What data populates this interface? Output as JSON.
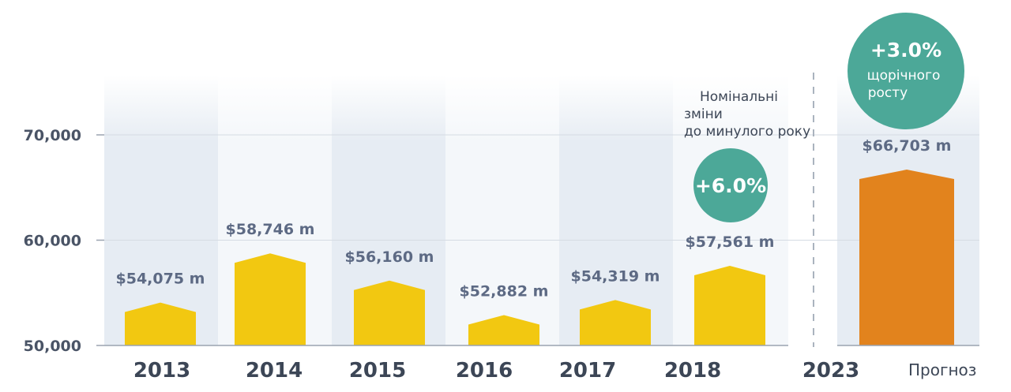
{
  "chart_data": {
    "type": "bar",
    "categories": [
      "2013",
      "2014",
      "2015",
      "2016",
      "2017",
      "2018",
      "2023"
    ],
    "values": [
      54075,
      58746,
      56160,
      52882,
      54319,
      57561,
      66703
    ],
    "value_labels": [
      "$54,075 m",
      "$58,746 m",
      "$56,160 m",
      "$52,882 m",
      "$54,319 m",
      "$57,561 m",
      "$66,703 m"
    ],
    "forecast_index": 6,
    "forecast_label": "Прогноз",
    "yticks": [
      "50,000",
      "60,000",
      "70,000"
    ],
    "ytick_values": [
      50000,
      60000,
      70000
    ],
    "ylim": [
      50000,
      75000
    ],
    "grid": true,
    "colors": {
      "bar": "#f2c811",
      "forecast_bar": "#e2831d",
      "badge": "#4ca898",
      "panel_dark": "#e6ecf3",
      "panel_light": "#f4f7fa",
      "grid": "#d5dbe3",
      "axis": "#9aa3b0"
    },
    "annotations": {
      "nominal_note": [
        "Номінальні",
        "зміни",
        "до минулого року"
      ],
      "nominal_badge": "+6.0%",
      "growth_badge": "+3.0%",
      "growth_note": [
        "щорічного",
        "росту"
      ]
    }
  }
}
